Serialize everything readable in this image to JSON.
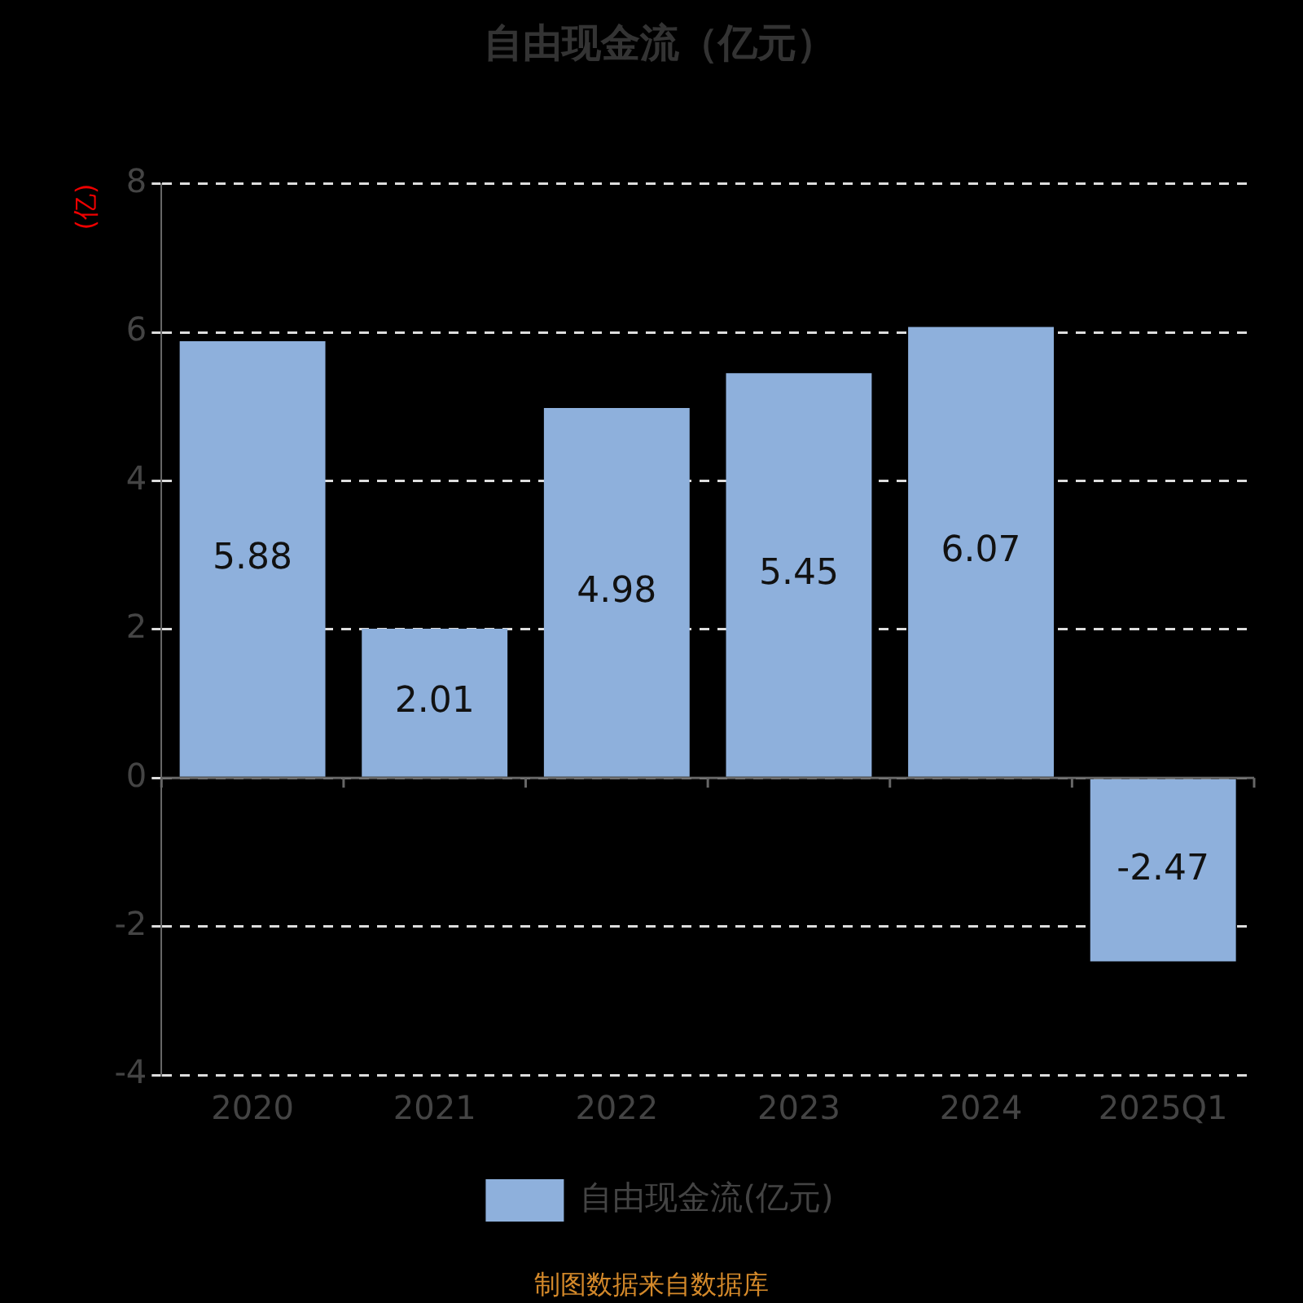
{
  "chart_data": {
    "type": "bar",
    "title": "自由现金流（亿元）",
    "ylabel": "(亿)",
    "categories": [
      "2020",
      "2021",
      "2022",
      "2023",
      "2024",
      "2025Q1"
    ],
    "series": [
      {
        "name": "自由现金流(亿元)",
        "color": "#8eb0dc",
        "values": [
          5.88,
          2.01,
          4.98,
          5.45,
          6.07,
          -2.47
        ]
      }
    ],
    "ylim": [
      -4,
      8
    ],
    "yticks": [
      -4,
      -2,
      0,
      2,
      4,
      6,
      8
    ],
    "grid": "y",
    "legend": "bottom",
    "data_labels": true,
    "annotations": [
      "制图数据来自数据库"
    ]
  }
}
